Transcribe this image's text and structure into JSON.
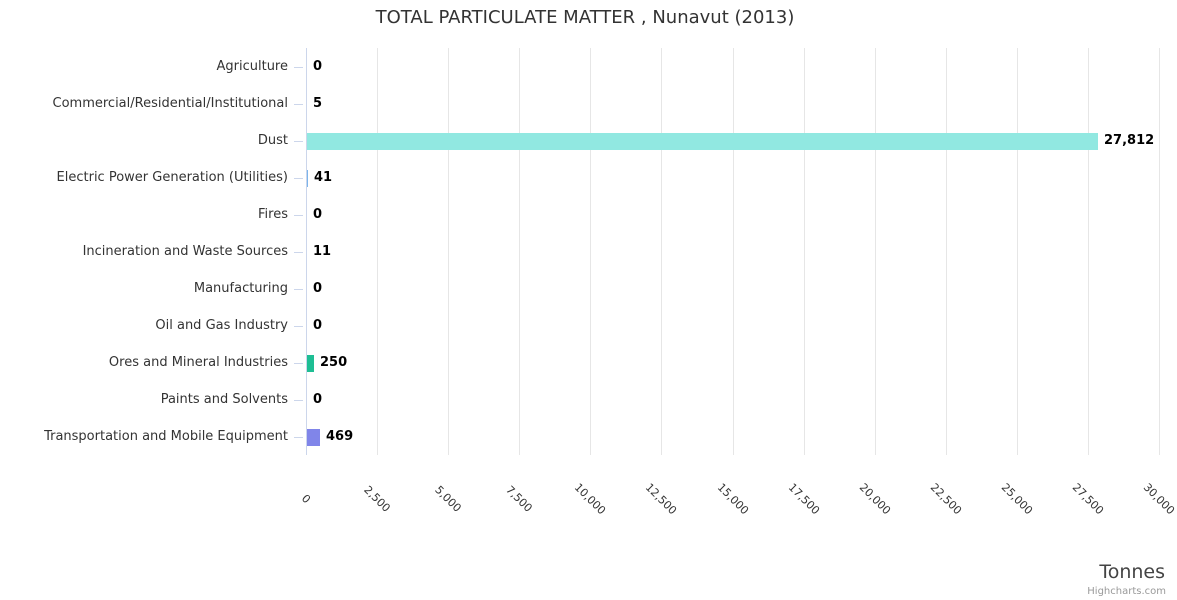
{
  "chart_data": {
    "type": "bar",
    "orientation": "horizontal",
    "title": "TOTAL PARTICULATE MATTER , Nunavut (2013)",
    "categories": [
      "Agriculture",
      "Commercial/Residential/Institutional",
      "Dust",
      "Electric Power Generation (Utilities)",
      "Fires",
      "Incineration and Waste Sources",
      "Manufacturing",
      "Oil and Gas Industry",
      "Ores and Mineral Industries",
      "Paints and Solvents",
      "Transportation and Mobile Equipment"
    ],
    "values": [
      0,
      5,
      27812,
      41,
      0,
      11,
      0,
      0,
      250,
      0,
      469
    ],
    "value_labels": [
      "0",
      "5",
      "27,812",
      "41",
      "0",
      "11",
      "0",
      "0",
      "250",
      "0",
      "469"
    ],
    "bar_colors": [
      null,
      null,
      "#91e8e1",
      null,
      null,
      null,
      null,
      null,
      "#1ebe94",
      null,
      "#8085e9"
    ],
    "default_bar_color": "#7cb5ec",
    "axis": {
      "title": "Tonnes",
      "min": 0,
      "max": 30000,
      "tick_interval": 2500,
      "tick_labels": [
        "0",
        "2,500",
        "5,000",
        "7,500",
        "10,000",
        "12,500",
        "15,000",
        "17,500",
        "20,000",
        "22,500",
        "25,000",
        "27,500",
        "30,000"
      ]
    },
    "legend": "none",
    "grid": true
  },
  "credits": "Highcharts.com",
  "colors": {
    "grid_line": "#e6e6e6",
    "axis_line": "#ccd6eb",
    "title_text": "#333333",
    "label_text": "#333333",
    "value_text": "#000000",
    "credits_text": "#999999"
  }
}
